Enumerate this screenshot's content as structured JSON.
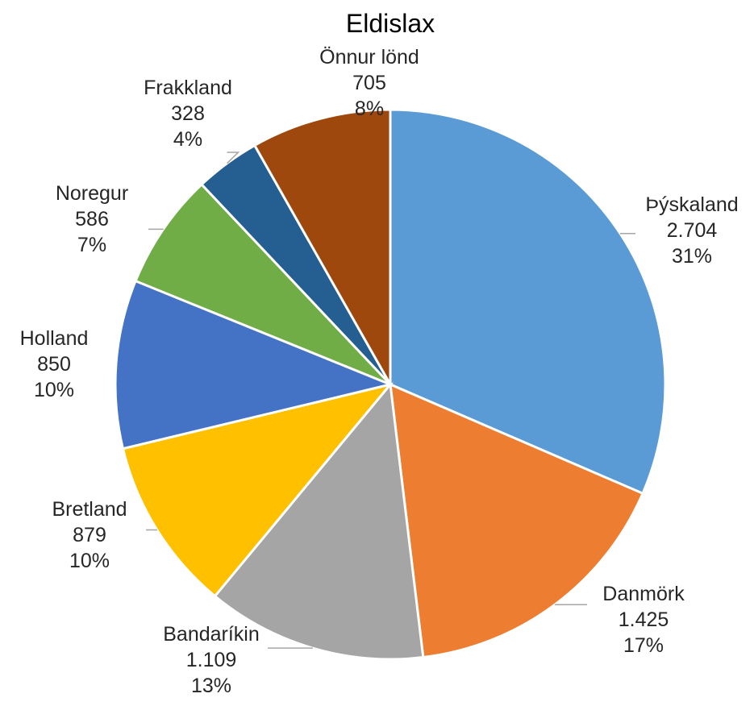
{
  "chart_data": {
    "type": "pie",
    "title": "Eldislax",
    "slices": [
      {
        "label": "Þýskaland",
        "value": 2704,
        "value_text": "2.704",
        "percent_text": "31%",
        "color": "#5b9bd5"
      },
      {
        "label": "Danmörk",
        "value": 1425,
        "value_text": "1.425",
        "percent_text": "17%",
        "color": "#ed7d31"
      },
      {
        "label": "Bandaríkin",
        "value": 1109,
        "value_text": "1.109",
        "percent_text": "13%",
        "color": "#a5a5a5"
      },
      {
        "label": "Bretland",
        "value": 879,
        "value_text": "879",
        "percent_text": "10%",
        "color": "#ffc000"
      },
      {
        "label": "Holland",
        "value": 850,
        "value_text": "850",
        "percent_text": "10%",
        "color": "#4472c4"
      },
      {
        "label": "Noregur",
        "value": 586,
        "value_text": "586",
        "percent_text": "7%",
        "color": "#70ad47"
      },
      {
        "label": "Frakkland",
        "value": 328,
        "value_text": "328",
        "percent_text": "4%",
        "color": "#255e91"
      },
      {
        "label": "Önnur lönd",
        "value": 705,
        "value_text": "705",
        "percent_text": "8%",
        "color": "#9e480e"
      }
    ],
    "start_angle": "12 o'clock",
    "direction": "clockwise",
    "legend": "none",
    "data_labels": "outside with leader lines"
  }
}
